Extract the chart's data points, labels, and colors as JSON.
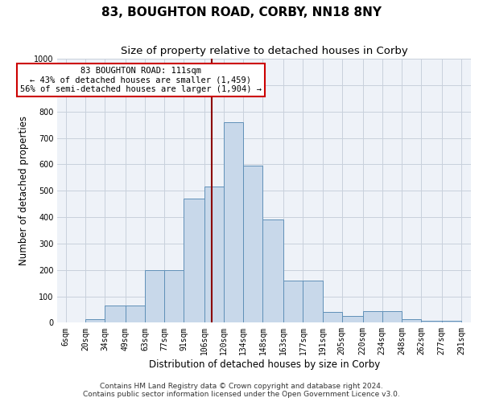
{
  "title": "83, BOUGHTON ROAD, CORBY, NN18 8NY",
  "subtitle": "Size of property relative to detached houses in Corby",
  "xlabel": "Distribution of detached houses by size in Corby",
  "ylabel": "Number of detached properties",
  "footer_line1": "Contains HM Land Registry data © Crown copyright and database right 2024.",
  "footer_line2": "Contains public sector information licensed under the Open Government Licence v3.0.",
  "annotation_title": "83 BOUGHTON ROAD: 111sqm",
  "annotation_line1": "← 43% of detached houses are smaller (1,459)",
  "annotation_line2": "56% of semi-detached houses are larger (1,904) →",
  "bar_left_edges": [
    6,
    20,
    34,
    49,
    63,
    77,
    91,
    106,
    120,
    134,
    148,
    163,
    177,
    191,
    205,
    220,
    234,
    248,
    262,
    277
  ],
  "bar_widths": [
    14,
    14,
    15,
    14,
    14,
    14,
    15,
    14,
    14,
    14,
    15,
    14,
    14,
    14,
    15,
    14,
    14,
    14,
    15,
    14
  ],
  "bar_heights": [
    0,
    13,
    65,
    65,
    200,
    200,
    470,
    515,
    760,
    595,
    390,
    160,
    160,
    40,
    25,
    45,
    45,
    13,
    8,
    8
  ],
  "bar_color": "#c8d8ea",
  "bar_edge_color": "#6090b8",
  "ref_line_color": "#8b0000",
  "ref_line_x": 111,
  "annotation_box_color": "#ffffff",
  "annotation_box_edge": "#cc0000",
  "grid_color": "#c8d0dc",
  "bg_color": "#eef2f8",
  "ylim": [
    0,
    1000
  ],
  "yticks": [
    0,
    100,
    200,
    300,
    400,
    500,
    600,
    700,
    800,
    900,
    1000
  ],
  "x_tick_labels": [
    "6sqm",
    "20sqm",
    "34sqm",
    "49sqm",
    "63sqm",
    "77sqm",
    "91sqm",
    "106sqm",
    "120sqm",
    "134sqm",
    "148sqm",
    "163sqm",
    "177sqm",
    "191sqm",
    "205sqm",
    "220sqm",
    "234sqm",
    "248sqm",
    "262sqm",
    "277sqm",
    "291sqm"
  ],
  "x_tick_positions": [
    6,
    20,
    34,
    49,
    63,
    77,
    91,
    106,
    120,
    134,
    148,
    163,
    177,
    191,
    205,
    220,
    234,
    248,
    262,
    277,
    291
  ],
  "title_fontsize": 11,
  "subtitle_fontsize": 9.5,
  "axis_label_fontsize": 8.5,
  "tick_fontsize": 7,
  "footer_fontsize": 6.5,
  "annotation_fontsize": 7.5
}
